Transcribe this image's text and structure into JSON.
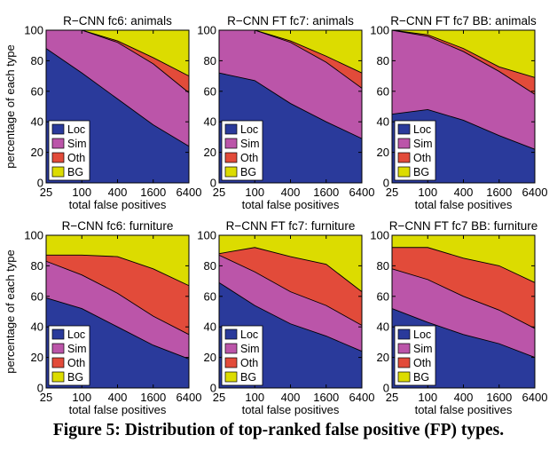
{
  "colors": {
    "Loc": "#2a3a9b",
    "Sim": "#bb55a9",
    "Oth": "#e24b3a",
    "BG": "#dcdc00"
  },
  "caption": "Figure 5: Distribution of top-ranked false positive (FP) types.",
  "chart_data": [
    {
      "type": "area",
      "title": "R−CNN fc6: animals",
      "xlabel": "total false positives",
      "ylabel": "percentage of each type",
      "x_ticks": [
        "25",
        "100",
        "400",
        "1600",
        "6400"
      ],
      "y_ticks": [
        "0",
        "20",
        "40",
        "60",
        "80",
        "100"
      ],
      "ylim": [
        0,
        100
      ],
      "x_scale": "log",
      "legend_position": "lower-left",
      "x": [
        25,
        100,
        400,
        1600,
        6400
      ],
      "series": [
        {
          "name": "Loc",
          "values": [
            88,
            72,
            55,
            38,
            24
          ]
        },
        {
          "name": "Sim",
          "values": [
            12,
            28,
            37,
            40,
            35
          ]
        },
        {
          "name": "Oth",
          "values": [
            0,
            0,
            1,
            4,
            11
          ]
        },
        {
          "name": "BG",
          "values": [
            0,
            0,
            7,
            18,
            30
          ]
        }
      ]
    },
    {
      "type": "area",
      "title": "R−CNN FT fc7: animals",
      "xlabel": "total false positives",
      "ylabel": "",
      "x_ticks": [
        "25",
        "100",
        "400",
        "1600",
        "6400"
      ],
      "y_ticks": [
        "0",
        "20",
        "40",
        "60",
        "80",
        "100"
      ],
      "ylim": [
        0,
        100
      ],
      "x_scale": "log",
      "legend_position": "lower-left",
      "x": [
        25,
        100,
        400,
        1600,
        6400
      ],
      "series": [
        {
          "name": "Loc",
          "values": [
            72,
            67,
            52,
            40,
            29
          ]
        },
        {
          "name": "Sim",
          "values": [
            28,
            33,
            40,
            39,
            33
          ]
        },
        {
          "name": "Oth",
          "values": [
            0,
            0,
            1,
            4,
            10
          ]
        },
        {
          "name": "BG",
          "values": [
            0,
            0,
            7,
            17,
            28
          ]
        }
      ]
    },
    {
      "type": "area",
      "title": "R−CNN FT fc7 BB: animals",
      "xlabel": "total false positives",
      "ylabel": "",
      "x_ticks": [
        "25",
        "100",
        "400",
        "1600",
        "6400"
      ],
      "y_ticks": [
        "0",
        "20",
        "40",
        "60",
        "80",
        "100"
      ],
      "ylim": [
        0,
        100
      ],
      "x_scale": "log",
      "legend_position": "lower-left",
      "x": [
        25,
        100,
        400,
        1600,
        6400
      ],
      "series": [
        {
          "name": "Loc",
          "values": [
            45,
            48,
            41,
            31,
            22
          ]
        },
        {
          "name": "Sim",
          "values": [
            55,
            48,
            45,
            42,
            36
          ]
        },
        {
          "name": "Oth",
          "values": [
            0,
            1,
            2,
            3,
            11
          ]
        },
        {
          "name": "BG",
          "values": [
            0,
            3,
            12,
            24,
            31
          ]
        }
      ]
    },
    {
      "type": "area",
      "title": "R−CNN fc6: furniture",
      "xlabel": "total false positives",
      "ylabel": "percentage of each type",
      "x_ticks": [
        "25",
        "100",
        "400",
        "1600",
        "6400"
      ],
      "y_ticks": [
        "0",
        "20",
        "40",
        "60",
        "80",
        "100"
      ],
      "ylim": [
        0,
        100
      ],
      "x_scale": "log",
      "legend_position": "lower-left",
      "x": [
        25,
        100,
        400,
        1600,
        6400
      ],
      "series": [
        {
          "name": "Loc",
          "values": [
            59,
            52,
            40,
            28,
            19
          ]
        },
        {
          "name": "Sim",
          "values": [
            24,
            22,
            22,
            19,
            16
          ]
        },
        {
          "name": "Oth",
          "values": [
            4,
            13,
            24,
            31,
            32
          ]
        },
        {
          "name": "BG",
          "values": [
            13,
            13,
            14,
            22,
            33
          ]
        }
      ]
    },
    {
      "type": "area",
      "title": "R−CNN FT fc7: furniture",
      "xlabel": "total false positives",
      "ylabel": "",
      "x_ticks": [
        "25",
        "100",
        "400",
        "1600",
        "6400"
      ],
      "y_ticks": [
        "0",
        "20",
        "40",
        "60",
        "80",
        "100"
      ],
      "ylim": [
        0,
        100
      ],
      "x_scale": "log",
      "legend_position": "lower-left",
      "x": [
        25,
        100,
        400,
        1600,
        6400
      ],
      "series": [
        {
          "name": "Loc",
          "values": [
            69,
            54,
            42,
            34,
            24
          ]
        },
        {
          "name": "Sim",
          "values": [
            18,
            22,
            21,
            20,
            17
          ]
        },
        {
          "name": "Oth",
          "values": [
            1,
            16,
            23,
            27,
            22
          ]
        },
        {
          "name": "BG",
          "values": [
            12,
            8,
            14,
            19,
            37
          ]
        }
      ]
    },
    {
      "type": "area",
      "title": "R−CNN FT fc7 BB: furniture",
      "xlabel": "total false positives",
      "ylabel": "",
      "x_ticks": [
        "25",
        "100",
        "400",
        "1600",
        "6400"
      ],
      "y_ticks": [
        "0",
        "20",
        "40",
        "60",
        "80",
        "100"
      ],
      "ylim": [
        0,
        100
      ],
      "x_scale": "log",
      "legend_position": "lower-left",
      "x": [
        25,
        100,
        400,
        1600,
        6400
      ],
      "series": [
        {
          "name": "Loc",
          "values": [
            52,
            43,
            35,
            29,
            20
          ]
        },
        {
          "name": "Sim",
          "values": [
            26,
            28,
            25,
            22,
            19
          ]
        },
        {
          "name": "Oth",
          "values": [
            14,
            21,
            25,
            29,
            30
          ]
        },
        {
          "name": "BG",
          "values": [
            8,
            8,
            15,
            20,
            31
          ]
        }
      ]
    }
  ]
}
